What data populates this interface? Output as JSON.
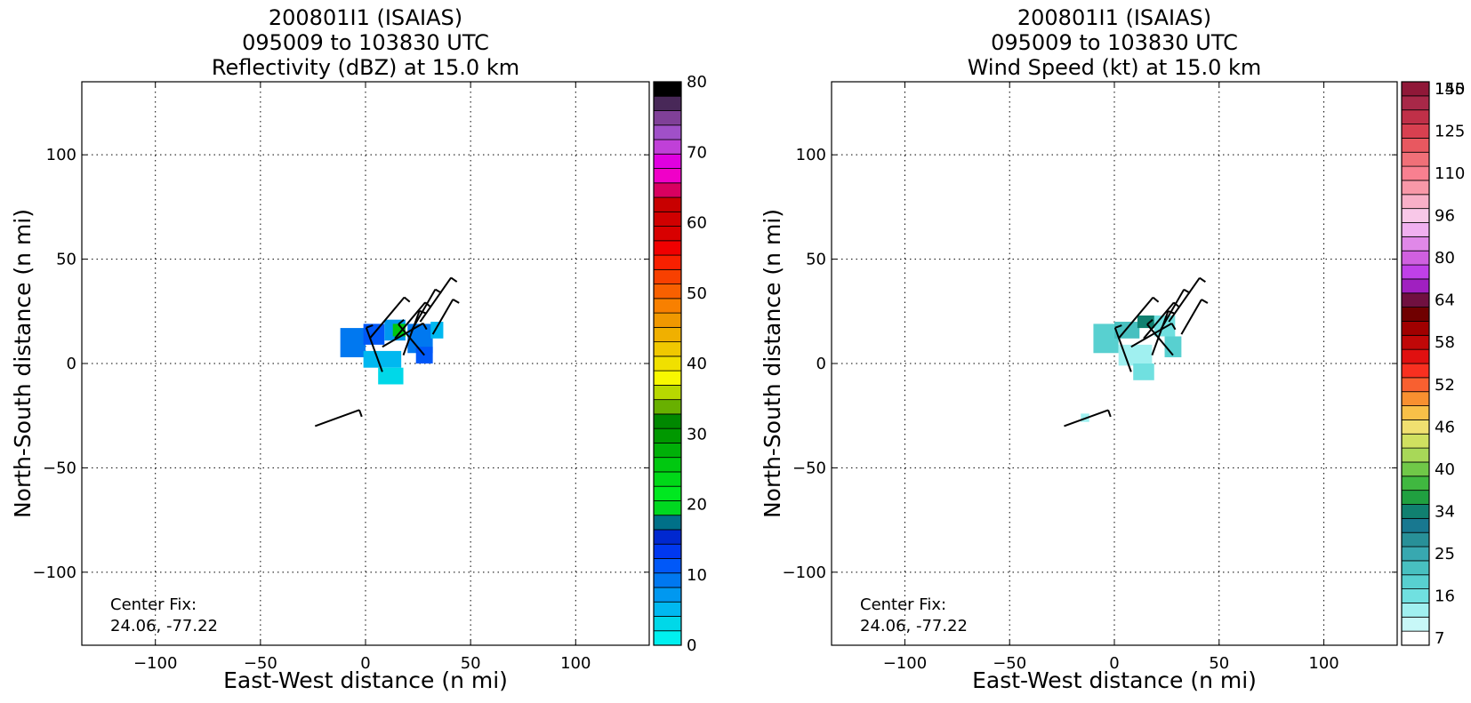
{
  "panels": [
    {
      "title_lines": [
        "200801I1 (ISAIAS)",
        "095009 to 103830 UTC",
        "Reflectivity (dBZ) at 15.0 km"
      ],
      "xlabel": "East-West distance (n mi)",
      "ylabel": "North-South distance (n mi)",
      "center_fix_label": "Center Fix:",
      "center_fix_value": "24.06, -77.22",
      "colorbar_ticks": [
        "0",
        "10",
        "20",
        "30",
        "40",
        "50",
        "60",
        "70",
        "80"
      ],
      "colorbar_colors": [
        "#00f0f0",
        "#00d8e8",
        "#00b8f0",
        "#0098f0",
        "#0078f0",
        "#0058f8",
        "#0038f0",
        "#0028d0",
        "#007088",
        "#00d820",
        "#00e820",
        "#00d818",
        "#00c810",
        "#00b008",
        "#009800",
        "#008800",
        "#68b000",
        "#b8d800",
        "#f8f800",
        "#f0e000",
        "#f0c800",
        "#f0b000",
        "#f09800",
        "#f88000",
        "#f86000",
        "#f84000",
        "#f82000",
        "#f00000",
        "#d80000",
        "#d00000",
        "#c80000",
        "#d80060",
        "#f000c8",
        "#e000e0",
        "#c040d8",
        "#a050c8",
        "#804098",
        "#482858",
        "#000000"
      ],
      "colorbar_range": [
        0,
        80
      ]
    },
    {
      "title_lines": [
        "200801I1 (ISAIAS)",
        "095009 to 103830 UTC",
        "Wind Speed (kt) at 15.0 km"
      ],
      "xlabel": "East-West distance (n mi)",
      "ylabel": "North-South distance (n mi)",
      "center_fix_label": "Center Fix:",
      "center_fix_value": "24.06, -77.22",
      "colorbar_ticks": [
        "7",
        "16",
        "25",
        "34",
        "40",
        "46",
        "52",
        "58",
        "64",
        "80",
        "96",
        "110",
        "125",
        "140",
        "155"
      ],
      "colorbar_colors": [
        "#ffffff",
        "#c8f8f8",
        "#a0f0f0",
        "#70e0e0",
        "#58d0d0",
        "#48c0c0",
        "#38a8b0",
        "#289098",
        "#187890",
        "#108070",
        "#20a040",
        "#40b840",
        "#70c848",
        "#a8d858",
        "#d0e060",
        "#f0e070",
        "#f8c048",
        "#f89030",
        "#f86030",
        "#f83020",
        "#e01010",
        "#c00808",
        "#a00000",
        "#700000",
        "#701040",
        "#a020c0",
        "#c040e8",
        "#d060e0",
        "#e088e8",
        "#f0b0f0",
        "#f8c8e8",
        "#f8b0c8",
        "#f898a8",
        "#f88090",
        "#f07078",
        "#e85860",
        "#d84050",
        "#c03048",
        "#a82848",
        "#901838"
      ],
      "colorbar_positions": [
        7,
        16,
        25,
        34,
        40,
        46,
        52,
        58,
        64,
        80,
        96,
        110,
        125,
        140,
        155
      ]
    }
  ],
  "axes": {
    "xticks": [
      "−100",
      "−50",
      "0",
      "50",
      "100"
    ],
    "yticks": [
      "100",
      "50",
      "0",
      "−50",
      "−100"
    ],
    "tick_values": [
      -100,
      -50,
      0,
      50,
      100
    ],
    "range": [
      -135,
      135
    ],
    "grid": true,
    "grid_style": "dotted"
  },
  "chart_data": [
    {
      "type": "heatmap",
      "title": "200801I1 (ISAIAS) 095009 to 103830 UTC Reflectivity (dBZ) at 15.0 km",
      "xlabel": "East-West distance (n mi)",
      "ylabel": "North-South distance (n mi)",
      "xlim": [
        -135,
        135
      ],
      "ylim": [
        -135,
        135
      ],
      "grid": true,
      "colorbar": {
        "label_values": [
          0,
          10,
          20,
          30,
          40,
          50,
          60,
          70,
          80
        ],
        "range": [
          0,
          80
        ]
      },
      "echo_region": {
        "x_range": [
          -8,
          38
        ],
        "y_range": [
          -12,
          25
        ]
      },
      "cells": [
        {
          "x": -6,
          "y": 10,
          "w": 12,
          "h": 14,
          "color": "#0078f0"
        },
        {
          "x": 4,
          "y": 14,
          "w": 10,
          "h": 10,
          "color": "#0058f8"
        },
        {
          "x": 14,
          "y": 16,
          "w": 10,
          "h": 10,
          "color": "#0098f0"
        },
        {
          "x": 16,
          "y": 16,
          "w": 6,
          "h": 6,
          "color": "#00c810"
        },
        {
          "x": 26,
          "y": 12,
          "w": 12,
          "h": 14,
          "color": "#0078f0"
        },
        {
          "x": 8,
          "y": 2,
          "w": 18,
          "h": 8,
          "color": "#00b8f0"
        },
        {
          "x": 12,
          "y": -6,
          "w": 12,
          "h": 8,
          "color": "#00d8e8"
        },
        {
          "x": 28,
          "y": 4,
          "w": 8,
          "h": 8,
          "color": "#0058f8"
        },
        {
          "x": 34,
          "y": 16,
          "w": 6,
          "h": 8,
          "color": "#00b8f0"
        }
      ]
    },
    {
      "type": "heatmap",
      "title": "200801I1 (ISAIAS) 095009 to 103830 UTC Wind Speed (kt) at 15.0 km",
      "xlabel": "East-West distance (n mi)",
      "ylabel": "North-South distance (n mi)",
      "xlim": [
        -135,
        135
      ],
      "ylim": [
        -135,
        135
      ],
      "grid": true,
      "colorbar": {
        "label_values": [
          7,
          16,
          25,
          34,
          40,
          46,
          52,
          58,
          64,
          80,
          96,
          110,
          125,
          140,
          155
        ]
      },
      "echo_region": {
        "x_range": [
          -6,
          36
        ],
        "y_range": [
          -8,
          28
        ]
      },
      "cells": [
        {
          "x": -4,
          "y": 12,
          "w": 12,
          "h": 14,
          "color": "#58d0d0"
        },
        {
          "x": 6,
          "y": 16,
          "w": 12,
          "h": 8,
          "color": "#48c0c0"
        },
        {
          "x": 16,
          "y": 20,
          "w": 10,
          "h": 6,
          "color": "#108070"
        },
        {
          "x": 24,
          "y": 18,
          "w": 10,
          "h": 10,
          "color": "#70e0e0"
        },
        {
          "x": 10,
          "y": 4,
          "w": 16,
          "h": 10,
          "color": "#a0f0f0"
        },
        {
          "x": 14,
          "y": -4,
          "w": 10,
          "h": 8,
          "color": "#70e0e0"
        },
        {
          "x": 28,
          "y": 8,
          "w": 8,
          "h": 10,
          "color": "#58d0d0"
        },
        {
          "x": -14,
          "y": -26,
          "w": 4,
          "h": 4,
          "color": "#a0f0f0"
        }
      ]
    }
  ],
  "wind_barbs": [
    {
      "x": 2,
      "y": 12,
      "dir": 40,
      "len": 16
    },
    {
      "x": 8,
      "y": 8,
      "dir": 60,
      "len": 14
    },
    {
      "x": 14,
      "y": 12,
      "dir": 40,
      "len": 14
    },
    {
      "x": 22,
      "y": 16,
      "dir": 30,
      "len": 14
    },
    {
      "x": 26,
      "y": 20,
      "dir": 35,
      "len": 16
    },
    {
      "x": 18,
      "y": 4,
      "dir": 20,
      "len": 14
    },
    {
      "x": 8,
      "y": -4,
      "dir": -20,
      "len": 14
    },
    {
      "x": 28,
      "y": 4,
      "dir": -40,
      "len": 12
    },
    {
      "x": 32,
      "y": 14,
      "dir": 30,
      "len": 12
    },
    {
      "x": -24,
      "y": -30,
      "dir": 70,
      "len": 14
    }
  ]
}
